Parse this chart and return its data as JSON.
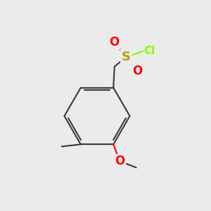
{
  "bg_color": "#ebebeb",
  "bond_color": "#3a3a3a",
  "bond_width": 1.5,
  "atom_colors": {
    "S": "#b8a000",
    "O": "#ff0000",
    "Cl": "#7fff00",
    "C": "#3a3a3a"
  },
  "font_size_S": 13,
  "font_size_O": 12,
  "font_size_Cl": 11,
  "font_size_small": 10
}
